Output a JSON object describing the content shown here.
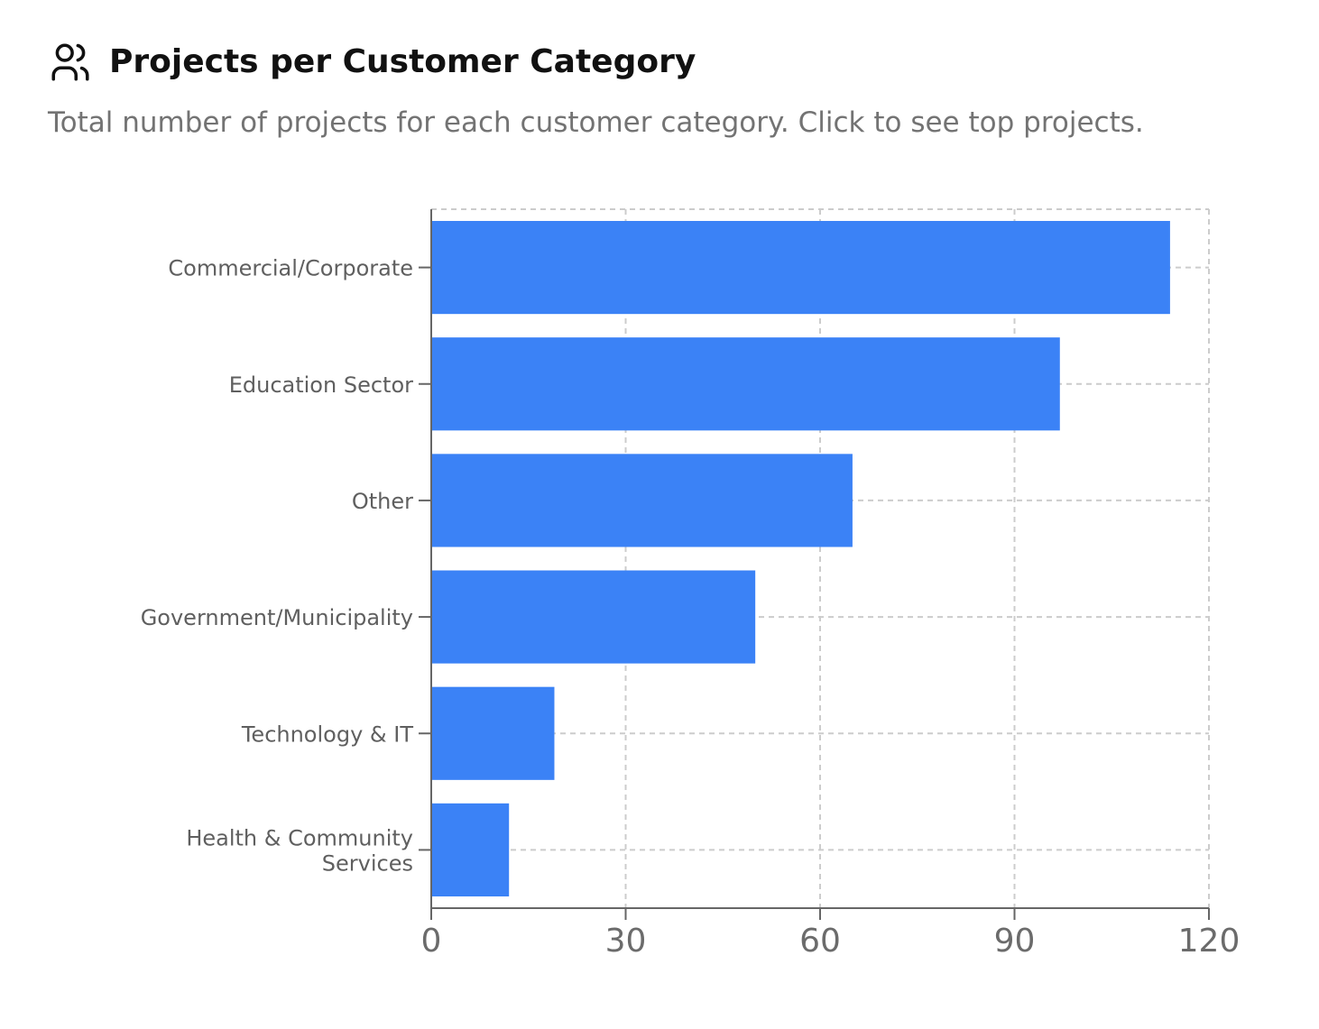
{
  "header": {
    "icon": "users-icon",
    "title": "Projects per Customer Category",
    "subtitle": "Total number of projects for each customer category. Click to see top projects."
  },
  "colors": {
    "bar": "#3b82f6",
    "grid": "#cccccc",
    "axis": "#666666"
  },
  "chart_data": {
    "type": "bar",
    "orientation": "horizontal",
    "categories": [
      "Commercial/Corporate",
      "Education Sector",
      "Other",
      "Government/Municipality",
      "Technology & IT",
      "Health & Community Services"
    ],
    "category_label_lines": [
      [
        "Commercial/Corporate"
      ],
      [
        "Education Sector"
      ],
      [
        "Other"
      ],
      [
        "Government/Municipality"
      ],
      [
        "Technology & IT"
      ],
      [
        "Health & Community",
        "Services"
      ]
    ],
    "values": [
      114,
      97,
      65,
      50,
      19,
      12
    ],
    "xlim": [
      0,
      120
    ],
    "xticks": [
      0,
      30,
      60,
      90,
      120
    ],
    "grid": true,
    "grid_style": "dashed",
    "title": "Projects per Customer Category",
    "xlabel": "",
    "ylabel": ""
  }
}
